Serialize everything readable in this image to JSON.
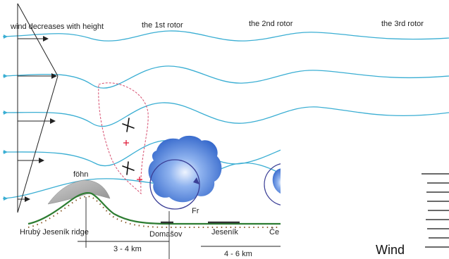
{
  "labels": {
    "wind_note": "wind decreases with height",
    "rotor_1": "the 1st rotor",
    "rotor_2": "the 2nd rotor",
    "rotor_3": "the 3rd rotor",
    "fohn": "föhn",
    "ridge": "Hrubý Jeseník ridge",
    "town_1": "Domašov",
    "town_2": "Jeseník",
    "town_3_partial": "Če",
    "rotor_circle": "Fr",
    "distance_1": "3 - 4 km",
    "distance_2": "4 - 6 km",
    "inset_label": "Wind"
  },
  "colors": {
    "streamline": "#3aaed3",
    "ground": "#2e7d32",
    "glider_path": "#d64d6e",
    "cloud": "#3f7bd8",
    "fohn_cap": "#a9a9a9",
    "rotor_ring": "#3b3f96",
    "text": "#222222"
  },
  "icons": {
    "glider": "glider-icon",
    "lift_marker": "plus-icon",
    "arrow": "arrowhead-icon"
  }
}
